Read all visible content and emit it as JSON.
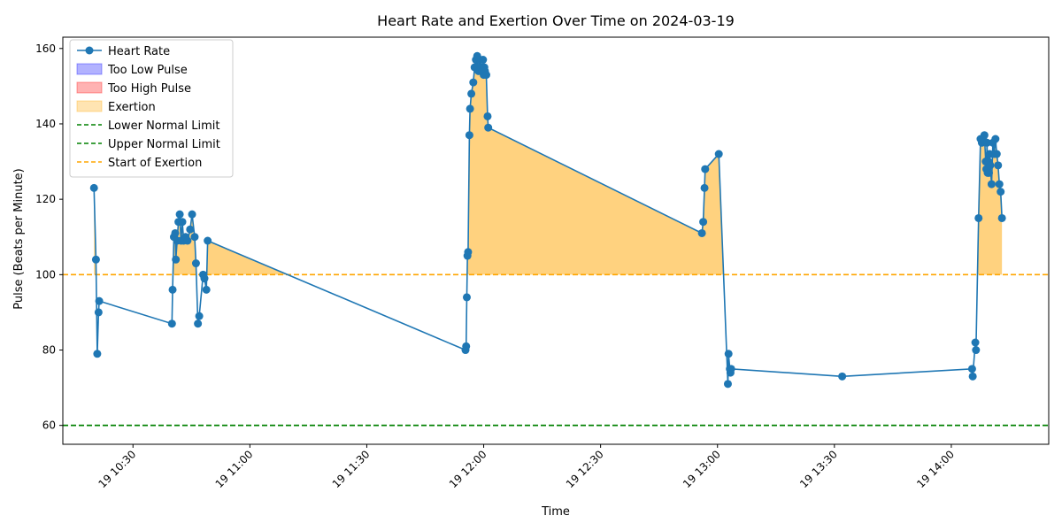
{
  "chart_data": {
    "type": "line",
    "title": "Heart Rate and Exertion Over Time on 2024-03-19",
    "xlabel": "Time",
    "ylabel": "Pulse (Beats per Minute)",
    "xlim": [
      "10:12",
      "14:25"
    ],
    "ylim": [
      55,
      163
    ],
    "xticks": [
      {
        "time": "10:30",
        "label": "19 10:30"
      },
      {
        "time": "11:00",
        "label": "19 11:00"
      },
      {
        "time": "11:30",
        "label": "19 11:30"
      },
      {
        "time": "12:00",
        "label": "19 12:00"
      },
      {
        "time": "12:30",
        "label": "19 12:30"
      },
      {
        "time": "13:00",
        "label": "19 13:00"
      },
      {
        "time": "13:30",
        "label": "19 13:30"
      },
      {
        "time": "14:00",
        "label": "19 14:00"
      }
    ],
    "yticks": [
      60,
      80,
      100,
      120,
      140,
      160
    ],
    "grid": false,
    "legend_position": "upper-left",
    "legend": [
      {
        "label": "Heart Rate",
        "kind": "line-marker",
        "color": "#1f77b4"
      },
      {
        "label": "Too Low Pulse",
        "kind": "patch",
        "color": "#0000ff"
      },
      {
        "label": "Too High Pulse",
        "kind": "patch",
        "color": "#ff0000"
      },
      {
        "label": "Exertion",
        "kind": "patch",
        "color": "#ffa500"
      },
      {
        "label": "Lower Normal Limit",
        "kind": "dashed",
        "color": "#008000"
      },
      {
        "label": "Upper Normal Limit",
        "kind": "dashed",
        "color": "#008000"
      },
      {
        "label": "Start of Exertion",
        "kind": "dashed",
        "color": "#ffa500"
      }
    ],
    "reference_lines": [
      {
        "name": "Lower Normal Limit",
        "y": 60,
        "color": "#008000"
      },
      {
        "name": "Upper Normal Limit",
        "y": 60,
        "color": "#008000"
      },
      {
        "name": "Start of Exertion",
        "y": 100,
        "color": "#ffa500"
      }
    ],
    "series": [
      {
        "name": "Heart Rate",
        "color": "#1f77b4",
        "points": [
          [
            "10:20:00",
            123
          ],
          [
            "10:20:30",
            104
          ],
          [
            "10:20:50",
            79
          ],
          [
            "10:21:10",
            90
          ],
          [
            "10:21:20",
            93
          ],
          [
            "10:40:00",
            87
          ],
          [
            "10:40:10",
            96
          ],
          [
            "10:40:30",
            110
          ],
          [
            "10:40:50",
            111
          ],
          [
            "10:41:00",
            104
          ],
          [
            "10:41:20",
            109
          ],
          [
            "10:41:40",
            114
          ],
          [
            "10:42:00",
            116
          ],
          [
            "10:42:20",
            109
          ],
          [
            "10:42:40",
            114
          ],
          [
            "10:43:00",
            109
          ],
          [
            "10:43:30",
            110
          ],
          [
            "10:44:00",
            109
          ],
          [
            "10:44:40",
            112
          ],
          [
            "10:45:10",
            116
          ],
          [
            "10:45:50",
            110
          ],
          [
            "10:46:10",
            103
          ],
          [
            "10:46:40",
            87
          ],
          [
            "10:47:00",
            89
          ],
          [
            "10:48:00",
            100
          ],
          [
            "10:48:20",
            99
          ],
          [
            "10:48:50",
            96
          ],
          [
            "10:49:10",
            109
          ],
          [
            "11:55:20",
            80
          ],
          [
            "11:55:30",
            81
          ],
          [
            "11:55:40",
            94
          ],
          [
            "11:55:50",
            105
          ],
          [
            "11:56:00",
            106
          ],
          [
            "11:56:20",
            137
          ],
          [
            "11:56:30",
            144
          ],
          [
            "11:56:50",
            148
          ],
          [
            "11:57:20",
            151
          ],
          [
            "11:57:40",
            155
          ],
          [
            "11:58:00",
            157
          ],
          [
            "11:58:10",
            155
          ],
          [
            "11:58:20",
            158
          ],
          [
            "11:58:40",
            154
          ],
          [
            "11:59:00",
            157
          ],
          [
            "11:59:20",
            155
          ],
          [
            "11:59:40",
            154
          ],
          [
            "11:59:50",
            157
          ],
          [
            "12:00:00",
            153
          ],
          [
            "12:00:10",
            155
          ],
          [
            "12:00:20",
            154
          ],
          [
            "12:00:40",
            153
          ],
          [
            "12:01:00",
            142
          ],
          [
            "12:01:10",
            139
          ],
          [
            "12:56:00",
            111
          ],
          [
            "12:56:20",
            114
          ],
          [
            "12:56:40",
            123
          ],
          [
            "12:56:50",
            128
          ],
          [
            "13:00:20",
            132
          ],
          [
            "13:02:40",
            71
          ],
          [
            "13:02:50",
            79
          ],
          [
            "13:03:10",
            75
          ],
          [
            "13:03:20",
            74
          ],
          [
            "13:03:30",
            75
          ],
          [
            "13:32:00",
            73
          ],
          [
            "14:05:20",
            75
          ],
          [
            "14:05:30",
            73
          ],
          [
            "14:06:10",
            82
          ],
          [
            "14:06:20",
            80
          ],
          [
            "14:07:00",
            115
          ],
          [
            "14:07:30",
            136
          ],
          [
            "14:07:50",
            135
          ],
          [
            "14:08:10",
            136
          ],
          [
            "14:08:30",
            137
          ],
          [
            "14:08:50",
            130
          ],
          [
            "14:09:00",
            128
          ],
          [
            "14:09:10",
            135
          ],
          [
            "14:09:20",
            127
          ],
          [
            "14:09:30",
            130
          ],
          [
            "14:09:40",
            127
          ],
          [
            "14:09:50",
            132
          ],
          [
            "14:10:00",
            129
          ],
          [
            "14:10:20",
            124
          ],
          [
            "14:10:40",
            135
          ],
          [
            "14:11:00",
            132
          ],
          [
            "14:11:20",
            136
          ],
          [
            "14:11:40",
            132
          ],
          [
            "14:12:00",
            129
          ],
          [
            "14:12:20",
            124
          ],
          [
            "14:12:40",
            122
          ],
          [
            "14:13:00",
            115
          ]
        ]
      }
    ],
    "exertion_fill": {
      "threshold": 100,
      "color": "#ffa500"
    }
  }
}
